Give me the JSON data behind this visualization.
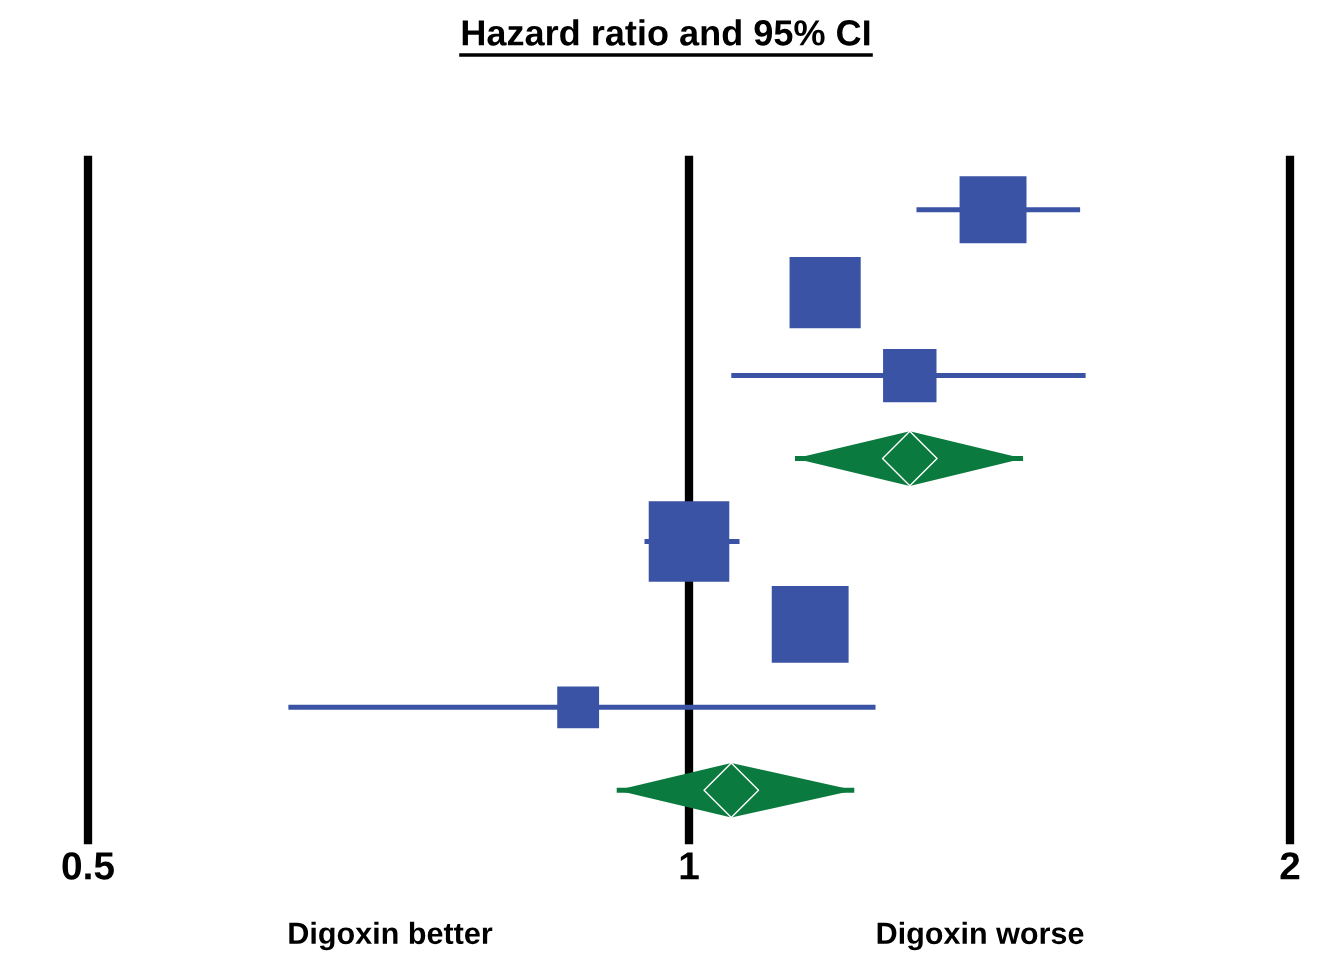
{
  "chart_data": {
    "type": "scatter",
    "orientation": "horizontal",
    "title": "Hazard ratio and 95% CI",
    "categories": [
      null,
      null,
      null,
      null,
      null,
      null,
      null,
      null
    ],
    "series": [
      {
        "color": "#3a53a4",
        "marker": "square",
        "values": [
          1.42,
          1.17,
          1.29,
          null,
          1.0,
          1.15,
          0.88,
          null
        ],
        "sizes": [
          0.69,
          0.78,
          0.44,
          null,
          1,
          0.91,
          0.27,
          null
        ],
        "errors": [
          [
            1.3,
            1.57
          ],
          null,
          [
            1.05,
            1.58
          ],
          null,
          [
            0.95,
            1.06
          ],
          null,
          [
            0.63,
            1.24
          ],
          null
        ]
      },
      {
        "color": "#0b7a3e",
        "marker": "diamond",
        "values": [
          null,
          null,
          null,
          1.29,
          null,
          null,
          null,
          1.05
        ],
        "errors": [
          null,
          null,
          null,
          [
            1.13,
            1.47
          ],
          null,
          null,
          null,
          [
            0.92,
            1.21
          ]
        ]
      }
    ],
    "log": "x",
    "xlim": [
      0.5,
      2
    ],
    "xticks": [
      0.5,
      1,
      2
    ],
    "grid": "x",
    "annotations": [
      "Digoxin better",
      "Digoxin worse"
    ]
  }
}
